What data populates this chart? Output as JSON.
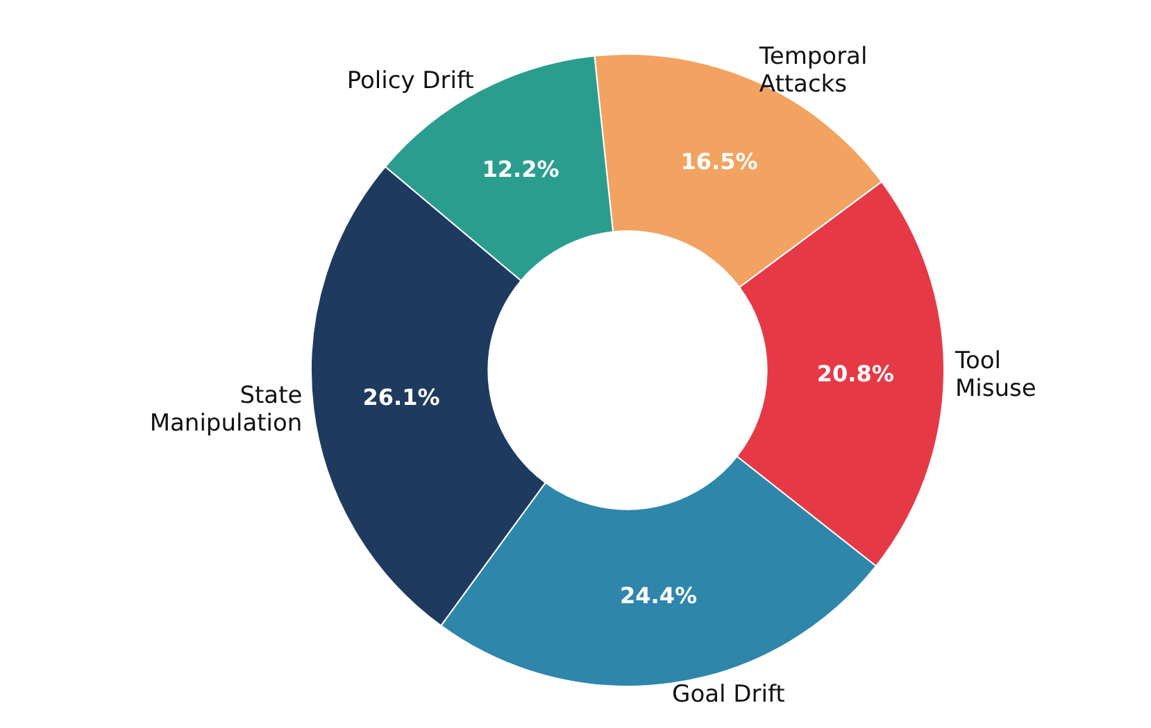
{
  "chart_data": {
    "type": "donut",
    "categories": [
      "Temporal\nAttacks",
      "Tool\nMisuse",
      "Goal Drift",
      "State\nManipulation",
      "Policy Drift"
    ],
    "values": [
      16.5,
      20.8,
      24.4,
      26.1,
      12.2
    ],
    "value_labels": [
      "16.5%",
      "20.8%",
      "24.4%",
      "26.1%",
      "12.2%"
    ],
    "colors": [
      "#f2a361",
      "#e63946",
      "#2e86ab",
      "#1f3a5f",
      "#2a9d8f"
    ],
    "legend": false
  }
}
